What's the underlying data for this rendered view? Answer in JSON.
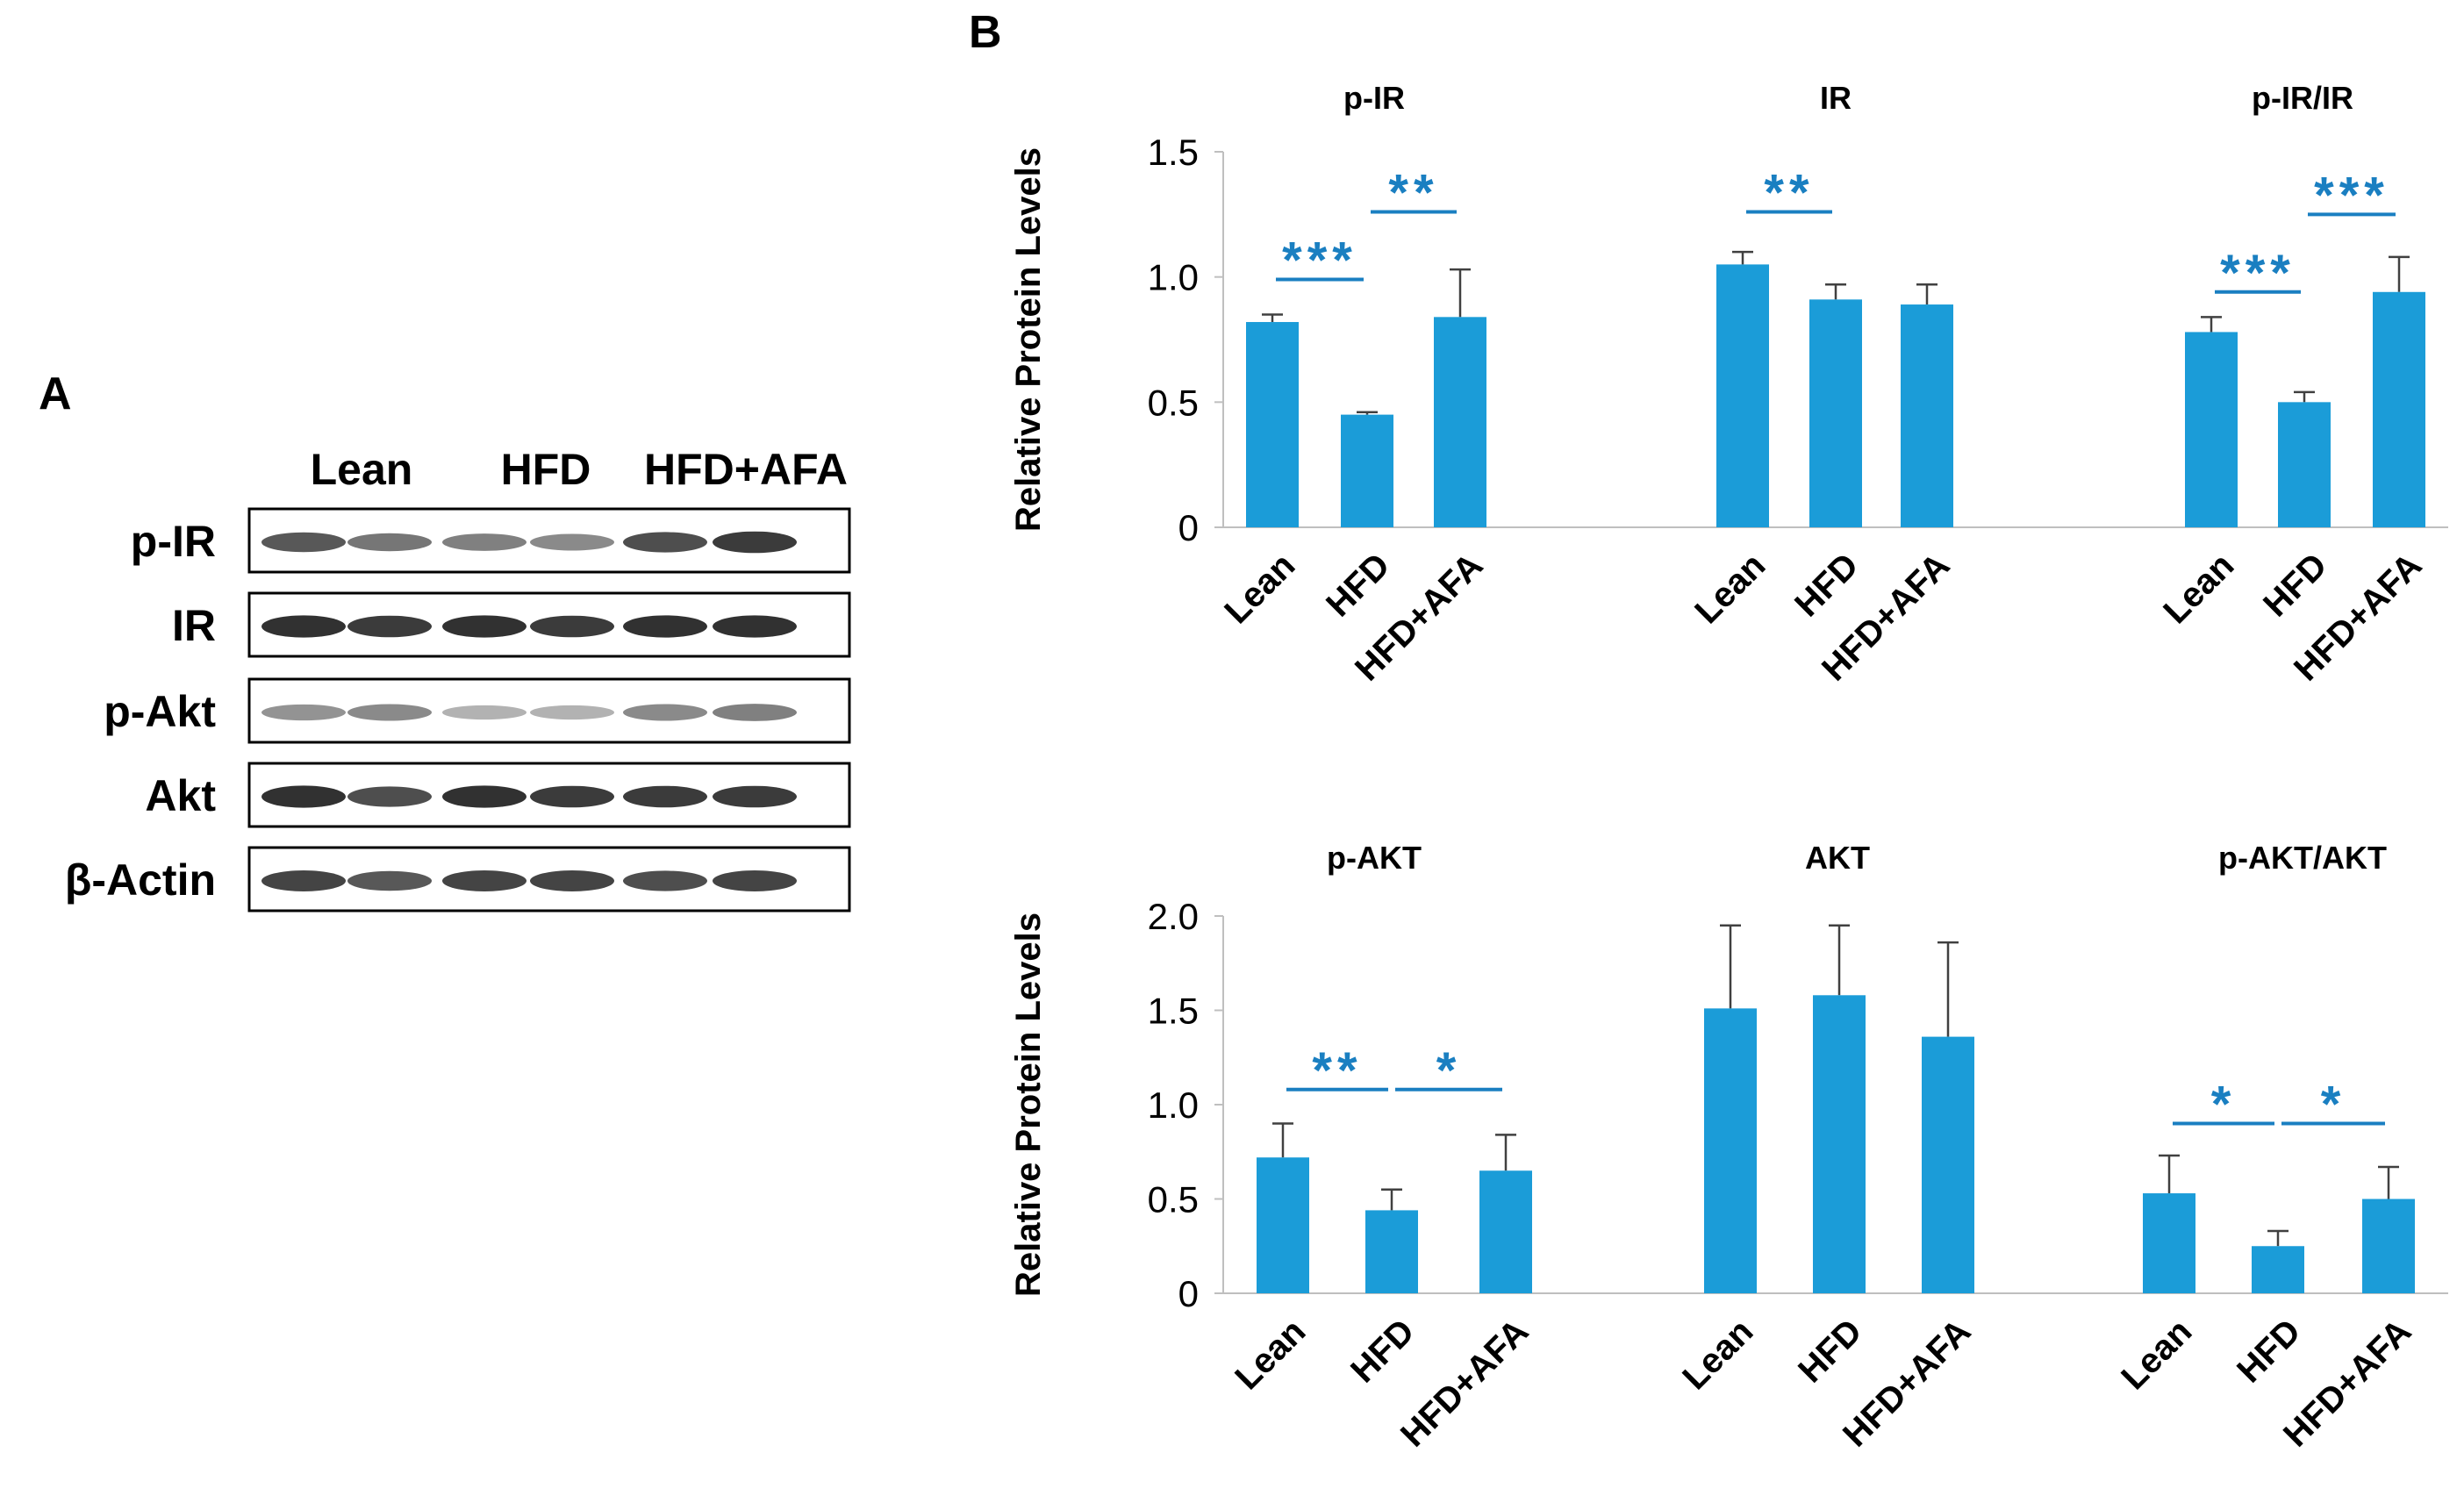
{
  "panel_a": {
    "letter": "A",
    "lanes": [
      "Lean",
      "HFD",
      "HFD+AFA"
    ],
    "rows": [
      {
        "label": "p-IR",
        "intensity": [
          0.75,
          0.6,
          0.55,
          0.5,
          0.8,
          0.9
        ]
      },
      {
        "label": "IR",
        "intensity": [
          0.95,
          0.9,
          0.95,
          0.9,
          0.95,
          0.95
        ]
      },
      {
        "label": "p-Akt",
        "intensity": [
          0.45,
          0.5,
          0.3,
          0.3,
          0.5,
          0.55
        ]
      },
      {
        "label": "Akt",
        "intensity": [
          0.95,
          0.8,
          0.95,
          0.9,
          0.9,
          0.9
        ]
      },
      {
        "label": "β-Actin",
        "intensity": [
          0.85,
          0.75,
          0.85,
          0.85,
          0.8,
          0.85
        ]
      }
    ]
  },
  "panel_b": {
    "letter": "B",
    "colors": {
      "bar": "#1b9cd8",
      "significance": "#1a7fc1",
      "axis": "#bfbfbf"
    }
  },
  "chart_data": [
    {
      "type": "bar",
      "ylabel": "Relative Protein Levels",
      "ylim": [
        0,
        1.5
      ],
      "yticks": [
        "0",
        "0.5",
        "1.0",
        "1.5"
      ],
      "groups": [
        {
          "title": "p-IR",
          "categories": [
            "Lean",
            "HFD",
            "HFD+AFA"
          ],
          "values": [
            0.82,
            0.45,
            0.84
          ],
          "errors": [
            0.03,
            0.01,
            0.19
          ],
          "significance": [
            {
              "from": 0,
              "to": 1,
              "y": 0.99,
              "label": "***"
            },
            {
              "from": 1,
              "to": 2,
              "y": 1.26,
              "label": "**"
            }
          ]
        },
        {
          "title": "IR",
          "categories": [
            "Lean",
            "HFD",
            "HFD+AFA"
          ],
          "values": [
            1.05,
            0.91,
            0.89
          ],
          "errors": [
            0.05,
            0.06,
            0.08
          ],
          "significance": [
            {
              "from": 0,
              "to": 1,
              "y": 1.26,
              "label": "**"
            }
          ]
        },
        {
          "title": "p-IR/IR",
          "categories": [
            "Lean",
            "HFD",
            "HFD+AFA"
          ],
          "values": [
            0.78,
            0.5,
            0.94
          ],
          "errors": [
            0.06,
            0.04,
            0.14
          ],
          "significance": [
            {
              "from": 0,
              "to": 1,
              "y": 0.94,
              "label": "***"
            },
            {
              "from": 1,
              "to": 2,
              "y": 1.25,
              "label": "***"
            }
          ]
        }
      ]
    },
    {
      "type": "bar",
      "ylabel": "Relative Protein Levels",
      "ylim": [
        0,
        2.0
      ],
      "yticks": [
        "0",
        "0.5",
        "1.0",
        "1.5",
        "2.0"
      ],
      "groups": [
        {
          "title": "p-AKT",
          "categories": [
            "Lean",
            "HFD",
            "HFD+AFA"
          ],
          "values": [
            0.72,
            0.44,
            0.65
          ],
          "errors": [
            0.18,
            0.11,
            0.19
          ],
          "significance": [
            {
              "from": 0,
              "to": 1,
              "y": 1.08,
              "label": "**"
            },
            {
              "from": 1,
              "to": 2,
              "y": 1.08,
              "label": "*"
            }
          ]
        },
        {
          "title": "AKT",
          "categories": [
            "Lean",
            "HFD",
            "HFD+AFA"
          ],
          "values": [
            1.51,
            1.58,
            1.36
          ],
          "errors": [
            0.44,
            0.37,
            0.5
          ],
          "significance": []
        },
        {
          "title": "p-AKT/AKT",
          "categories": [
            "Lean",
            "HFD",
            "HFD+AFA"
          ],
          "values": [
            0.53,
            0.25,
            0.5
          ],
          "errors": [
            0.2,
            0.08,
            0.17
          ],
          "significance": [
            {
              "from": 0,
              "to": 1,
              "y": 0.9,
              "label": "*"
            },
            {
              "from": 1,
              "to": 2,
              "y": 0.9,
              "label": "*"
            }
          ]
        }
      ]
    }
  ]
}
